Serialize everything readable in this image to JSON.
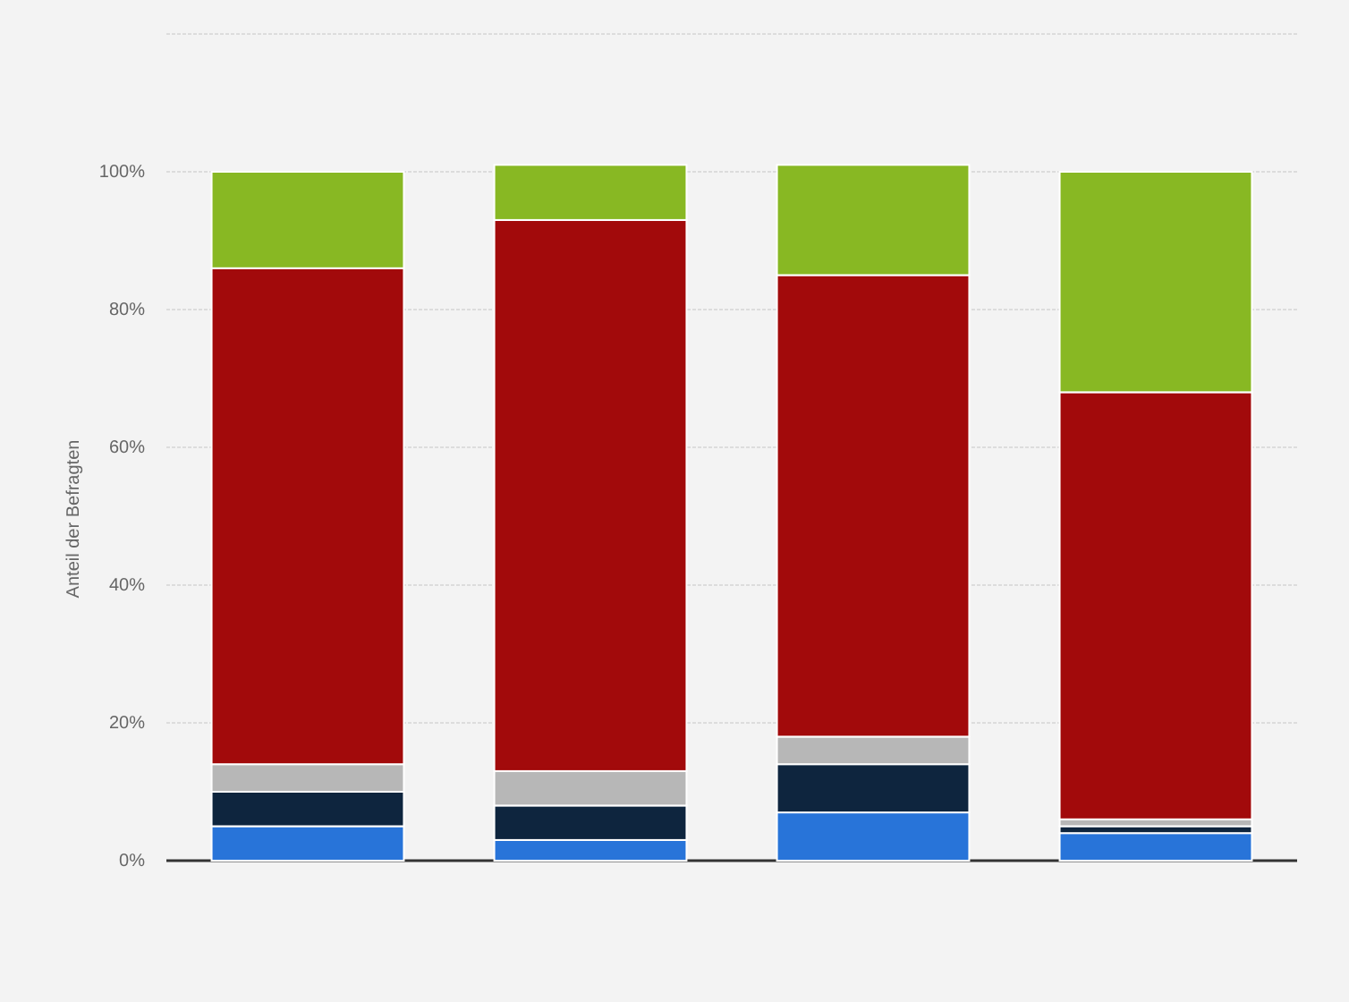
{
  "chart_data": {
    "type": "bar",
    "stacked": true,
    "ylabel": "Anteil der Befragten",
    "categories": [
      null,
      null,
      null,
      null
    ],
    "series": [
      {
        "color": "#2874d9",
        "values": [
          5,
          3,
          7,
          4
        ]
      },
      {
        "color": "#0e253e",
        "values": [
          5,
          5,
          7,
          1
        ]
      },
      {
        "color": "#b7b7b7",
        "values": [
          4,
          5,
          4,
          1
        ]
      },
      {
        "color": "#a20a0b",
        "values": [
          72,
          80,
          67,
          62
        ]
      },
      {
        "color": "#88b823",
        "values": [
          14,
          8,
          16,
          32
        ]
      }
    ],
    "ylim": [
      0,
      120
    ],
    "yticks": [
      {
        "value": 0,
        "label": "0%"
      },
      {
        "value": 20,
        "label": "20%"
      },
      {
        "value": 40,
        "label": "40%"
      },
      {
        "value": 60,
        "label": "60%"
      },
      {
        "value": 80,
        "label": "80%"
      },
      {
        "value": 100,
        "label": "100%"
      },
      {
        "value": 120,
        "label": null
      }
    ],
    "grid": "y"
  }
}
